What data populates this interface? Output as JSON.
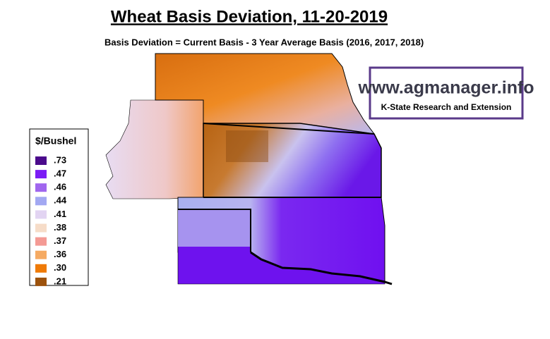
{
  "title": "Wheat Basis Deviation, 11-20-2019",
  "subtitle": "Basis Deviation = Current Basis - 3 Year Average Basis (2016, 2017, 2018)",
  "logo": {
    "url": "www.agmanager.info",
    "org": "K-State Research and Extension"
  },
  "legend": {
    "title": "$/Bushel",
    "items": [
      {
        "label": ".73",
        "color": "#4b0a8c"
      },
      {
        "label": ".47",
        "color": "#7b1cf5"
      },
      {
        "label": ".46",
        "color": "#a066ee"
      },
      {
        "label": ".44",
        "color": "#a2a8f2"
      },
      {
        "label": ".41",
        "color": "#e2d4f2"
      },
      {
        "label": ".38",
        "color": "#f6dcc8"
      },
      {
        "label": ".37",
        "color": "#f49a94"
      },
      {
        "label": ".36",
        "color": "#f5aa62"
      },
      {
        "label": ".30",
        "color": "#ef7a06"
      },
      {
        "label": ".21",
        "color": "#9c520c"
      }
    ]
  }
}
